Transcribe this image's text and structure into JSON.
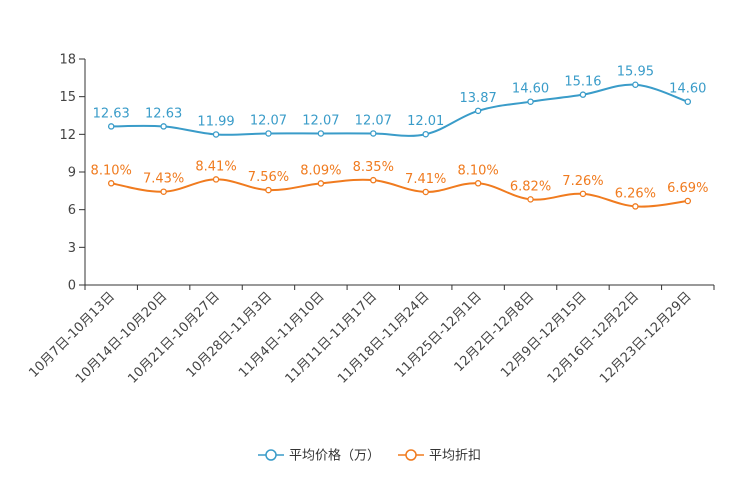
{
  "chart_data": {
    "type": "line",
    "title": "",
    "xlabel": "",
    "ylabel": "",
    "ylim": [
      0,
      18
    ],
    "yticks": [
      0,
      3,
      6,
      9,
      12,
      15,
      18
    ],
    "grid": false,
    "legend_position": "bottom",
    "categories": [
      "10月7日-10月13日",
      "10月14日-10月20日",
      "10月21日-10月27日",
      "10月28日-11月3日",
      "11月4日-11月10日",
      "11月11日-11月17日",
      "11月18日-11月24日",
      "11月25日-12月1日",
      "12月2日-12月8日",
      "12月9日-12月15日",
      "12月16日-12月22日",
      "12月23日-12月29日"
    ],
    "series": [
      {
        "name": "平均价格（万）",
        "color": "#3a9cc9",
        "values": [
          12.63,
          12.63,
          11.99,
          12.07,
          12.07,
          12.07,
          12.01,
          13.87,
          14.6,
          15.16,
          15.95,
          14.6
        ],
        "labels": [
          "12.63",
          "12.63",
          "11.99",
          "12.07",
          "12.07",
          "12.07",
          "12.01",
          "13.87",
          "14.60",
          "15.16",
          "15.95",
          "14.60"
        ]
      },
      {
        "name": "平均折扣",
        "color": "#f07b1f",
        "values": [
          8.1,
          7.43,
          8.41,
          7.56,
          8.09,
          8.35,
          7.41,
          8.1,
          6.82,
          7.26,
          6.26,
          6.69
        ],
        "labels": [
          "8.10%",
          "7.43%",
          "8.41%",
          "7.56%",
          "8.09%",
          "8.35%",
          "7.41%",
          "8.10%",
          "6.82%",
          "7.26%",
          "6.26%",
          "6.69%"
        ]
      }
    ]
  }
}
